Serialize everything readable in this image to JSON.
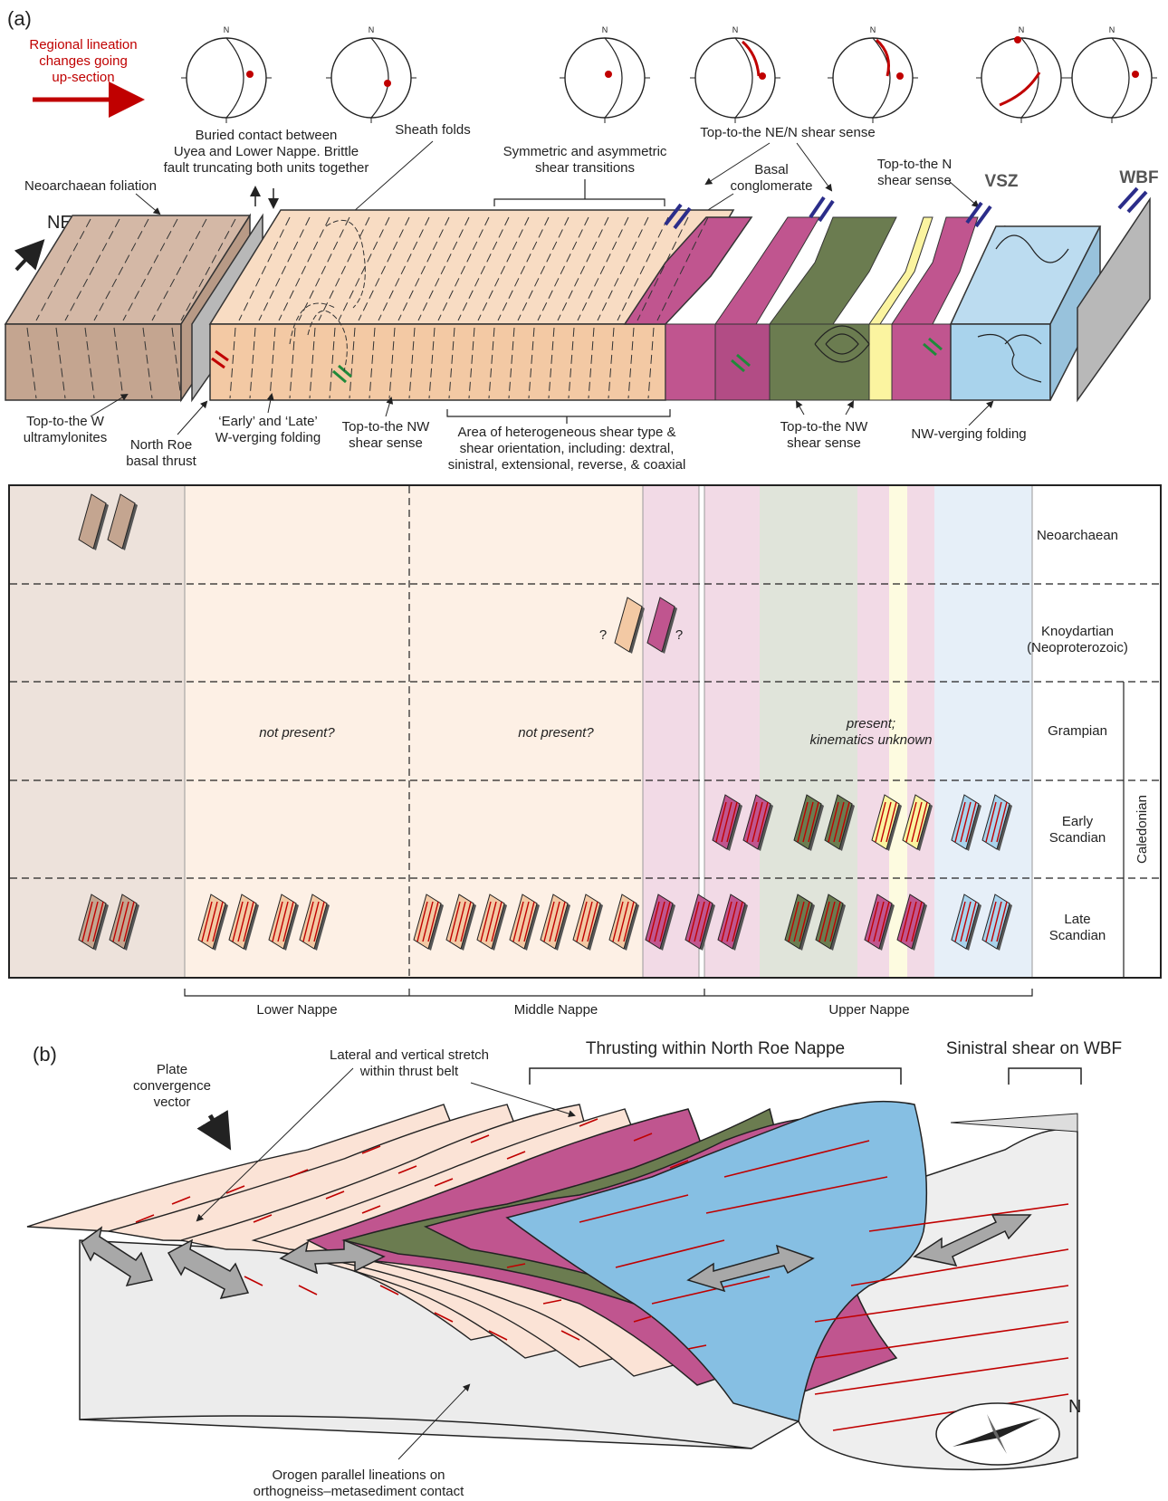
{
  "panel_a": {
    "label": "(a)",
    "lineation_note": [
      "Regional lineation",
      "changes going",
      "up-section"
    ],
    "north": "N",
    "ne_arrow": "NE",
    "annotations_top": {
      "buried_contact": [
        "Buried contact between",
        "Uyea and Lower Nappe. Brittle",
        "fault truncating both units together"
      ],
      "sheath": "Sheath folds",
      "neoarchaean_foliation": "Neoarchaean foliation",
      "sym_asym": [
        "Symmetric and asymmetric",
        "shear transitions"
      ],
      "ne_n_shear": "Top-to-the NE/N shear sense",
      "basal_cong": [
        "Basal",
        "conglomerate"
      ],
      "n_shear": [
        "Top-to-the N",
        "shear sense"
      ],
      "vsz": "VSZ",
      "wbf": "WBF"
    },
    "annotations_bottom": {
      "ultramylonites": [
        "Top-to-the W",
        "ultramylonites"
      ],
      "basal_thrust": [
        "North Roe",
        "basal thrust"
      ],
      "w_verging": [
        "‘Early’ and ‘Late’",
        "W-verging folding"
      ],
      "nw_shear_1": [
        "Top-to-the NW",
        "shear sense"
      ],
      "heterogeneous": [
        "Area of heterogeneous shear type &",
        "shear orientation, including: dextral,",
        "sinistral, extensional, reverse, & coaxial"
      ],
      "nw_shear_2": [
        "Top-to-the NW",
        "shear sense"
      ],
      "nw_verging": "NW-verging folding"
    },
    "table": {
      "rows": [
        "Neoarchaean",
        "Knoydartian (Neoproterozoic)",
        "Grampian",
        "Early Scandian",
        "Late Scandian"
      ],
      "row_lines": [
        [
          "Neoarchaean"
        ],
        [
          "Knoydartian",
          "(Neoproterozoic)"
        ],
        [
          "Grampian"
        ],
        [
          "Early",
          "Scandian"
        ],
        [
          "Late",
          "Scandian"
        ]
      ],
      "caledonian": "Caledonian",
      "notes": {
        "lower": "not present?",
        "middle": "not present?",
        "upper": [
          "present;",
          "kinematics unknown"
        ]
      },
      "question": "?",
      "nappes": [
        "Lower Nappe",
        "Middle Nappe",
        "Upper Nappe"
      ]
    }
  },
  "panel_b": {
    "label": "(b)",
    "plate": [
      "Plate",
      "convergence",
      "vector"
    ],
    "stretch": [
      "Lateral and vertical stretch",
      "within thrust belt"
    ],
    "thrusting": "Thrusting within North Roe Nappe",
    "sinistral": "Sinistral shear on WBF",
    "orogen": [
      "Orogen parallel lineations on",
      "orthogneiss–metasediment contact"
    ],
    "north": "N"
  },
  "colors": {
    "archaean": "#c4a590",
    "lower": "#f3c9a4",
    "magenta": "#c0558f",
    "green": "#6b7c50",
    "yellow": "#fbf4a0",
    "blue": "#a9d3ec",
    "grey": "#b8b8b8",
    "lineation": "#c00000",
    "shear_green": "#1f8a3a",
    "shear_blue": "#2b2d8a"
  }
}
